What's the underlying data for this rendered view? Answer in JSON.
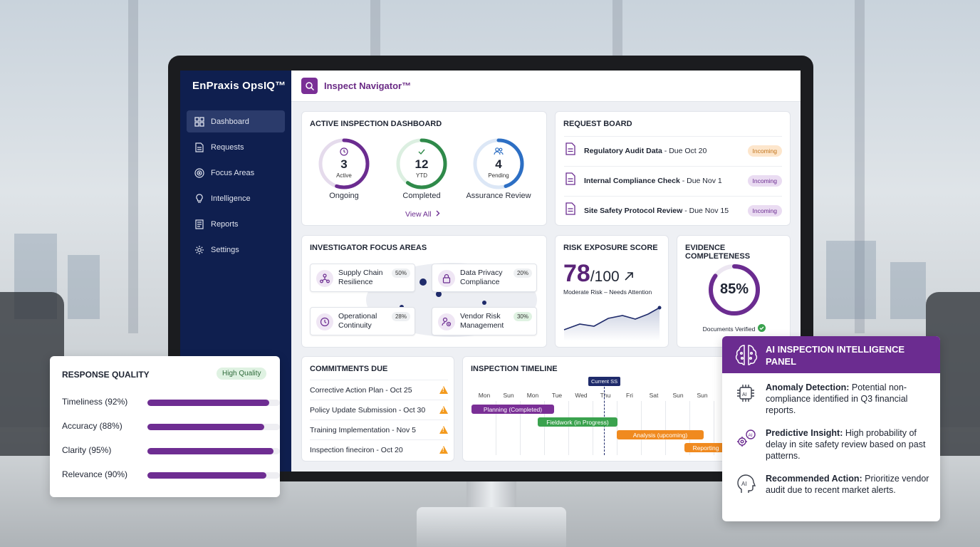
{
  "app": {
    "brand": "EnPraxis OpsIQ™",
    "module_title": "Inspect Navigator™"
  },
  "sidebar": {
    "items": [
      {
        "label": "Dashboard",
        "icon": "grid-icon",
        "active": true
      },
      {
        "label": "Requests",
        "icon": "document-icon"
      },
      {
        "label": "Focus Areas",
        "icon": "target-icon"
      },
      {
        "label": "Intelligence",
        "icon": "lightbulb-icon"
      },
      {
        "label": "Reports",
        "icon": "report-icon"
      },
      {
        "label": "Settings",
        "icon": "gear-icon"
      }
    ]
  },
  "active_dashboard": {
    "title": "ACTIVE INSPECTION DASHBOARD",
    "rings": [
      {
        "value": "3",
        "sub": "Active",
        "caption": "Ongoing",
        "color": "#6b2c90",
        "fill": 0.55
      },
      {
        "value": "12",
        "sub": "YTD",
        "caption": "Completed",
        "color": "#2f8a4a",
        "fill": 0.6
      },
      {
        "value": "4",
        "sub": "Pending",
        "caption": "Assurance Review",
        "color": "#2d6fc4",
        "fill": 0.45
      }
    ],
    "view_all": "View All"
  },
  "request_board": {
    "title": "REQUEST BOARD",
    "items": [
      {
        "name": "Regulatory Audit Data",
        "due": " - Due Oct 20",
        "badge": "Incoming",
        "badge_bg": "#fde6cc",
        "badge_fg": "#c0731b"
      },
      {
        "name": "Internal Compliance Check",
        "due": " - Due Nov 1",
        "badge": "Incoming",
        "badge_bg": "#eadcf2",
        "badge_fg": "#6b2c90"
      },
      {
        "name": "Site Safety Protocol Review",
        "due": " - Due Nov 15",
        "badge": "Incoming",
        "badge_bg": "#eadcf2",
        "badge_fg": "#6b2c90"
      }
    ]
  },
  "focus_areas": {
    "title": "INVESTIGATOR FOCUS AREAS",
    "items": [
      {
        "label": "Supply Chain Resilience",
        "pct": "50%",
        "icon": "network-icon"
      },
      {
        "label": "Data Privacy Compliance",
        "pct": "20%",
        "icon": "lock-icon"
      },
      {
        "label": "Operational Continuity",
        "pct": "28%",
        "icon": "clock-icon"
      },
      {
        "label": "Vendor Risk Management",
        "pct": "30%",
        "icon": "vendor-icon"
      }
    ]
  },
  "risk": {
    "title": "RISK EXPOSURE SCORE",
    "score": "78",
    "out_of": "/100",
    "caption": "Moderate Risk – Needs Attention"
  },
  "evidence": {
    "title": "EVIDENCE COMPLETENESS",
    "value": "85%",
    "fill": 0.85,
    "caption": "Documents Verified"
  },
  "commitments": {
    "title": "COMMITMENTS DUE",
    "items": [
      "Corrective Action Plan - Oct 25",
      "Policy Update Submission - Oct 30",
      "Training Implementation - Nov 5",
      "Inspection fineciron - Oct 20"
    ]
  },
  "timeline": {
    "title": "INSPECTION TIMELINE",
    "marker": "Current SS",
    "days": [
      "Mon",
      "Sun",
      "Mon",
      "Tue",
      "Wed",
      "Thu",
      "Fri",
      "Sat",
      "Sun",
      "Sun"
    ],
    "bars": [
      {
        "label": "Planning (Completed)",
        "color": "#7a2f96"
      },
      {
        "label": "Fieldwork (in Progress)",
        "color": "#3aa24e"
      },
      {
        "label": "Analysis (upcoming)",
        "color": "#f08a1f"
      },
      {
        "label": "Reporting",
        "color": "#f08a1f"
      }
    ]
  },
  "response_quality": {
    "title": "RESPONSE QUALITY",
    "badge": "High Quality",
    "rows": [
      {
        "label": "Timeliness (92%)",
        "value": 0.92
      },
      {
        "label": "Accuracy (88%)",
        "value": 0.88
      },
      {
        "label": "Clarity (95%)",
        "value": 0.95
      },
      {
        "label": "Relevance (90%)",
        "value": 0.9
      }
    ]
  },
  "ai_panel": {
    "title": "AI INSPECTION INTELLIGENCE PANEL",
    "items": [
      {
        "head": "Anomaly Detection:",
        "body": " Potential non-compliance identified in Q3 financial reports.",
        "icon": "ai-chip-icon"
      },
      {
        "head": "Predictive Insight:",
        "body": " High probability of delay in site safety review based on past patterns.",
        "icon": "ai-gear-icon"
      },
      {
        "head": "Recommended Action:",
        "body": " Prioritize vendor audit due to recent market alerts.",
        "icon": "ai-head-icon"
      }
    ]
  }
}
